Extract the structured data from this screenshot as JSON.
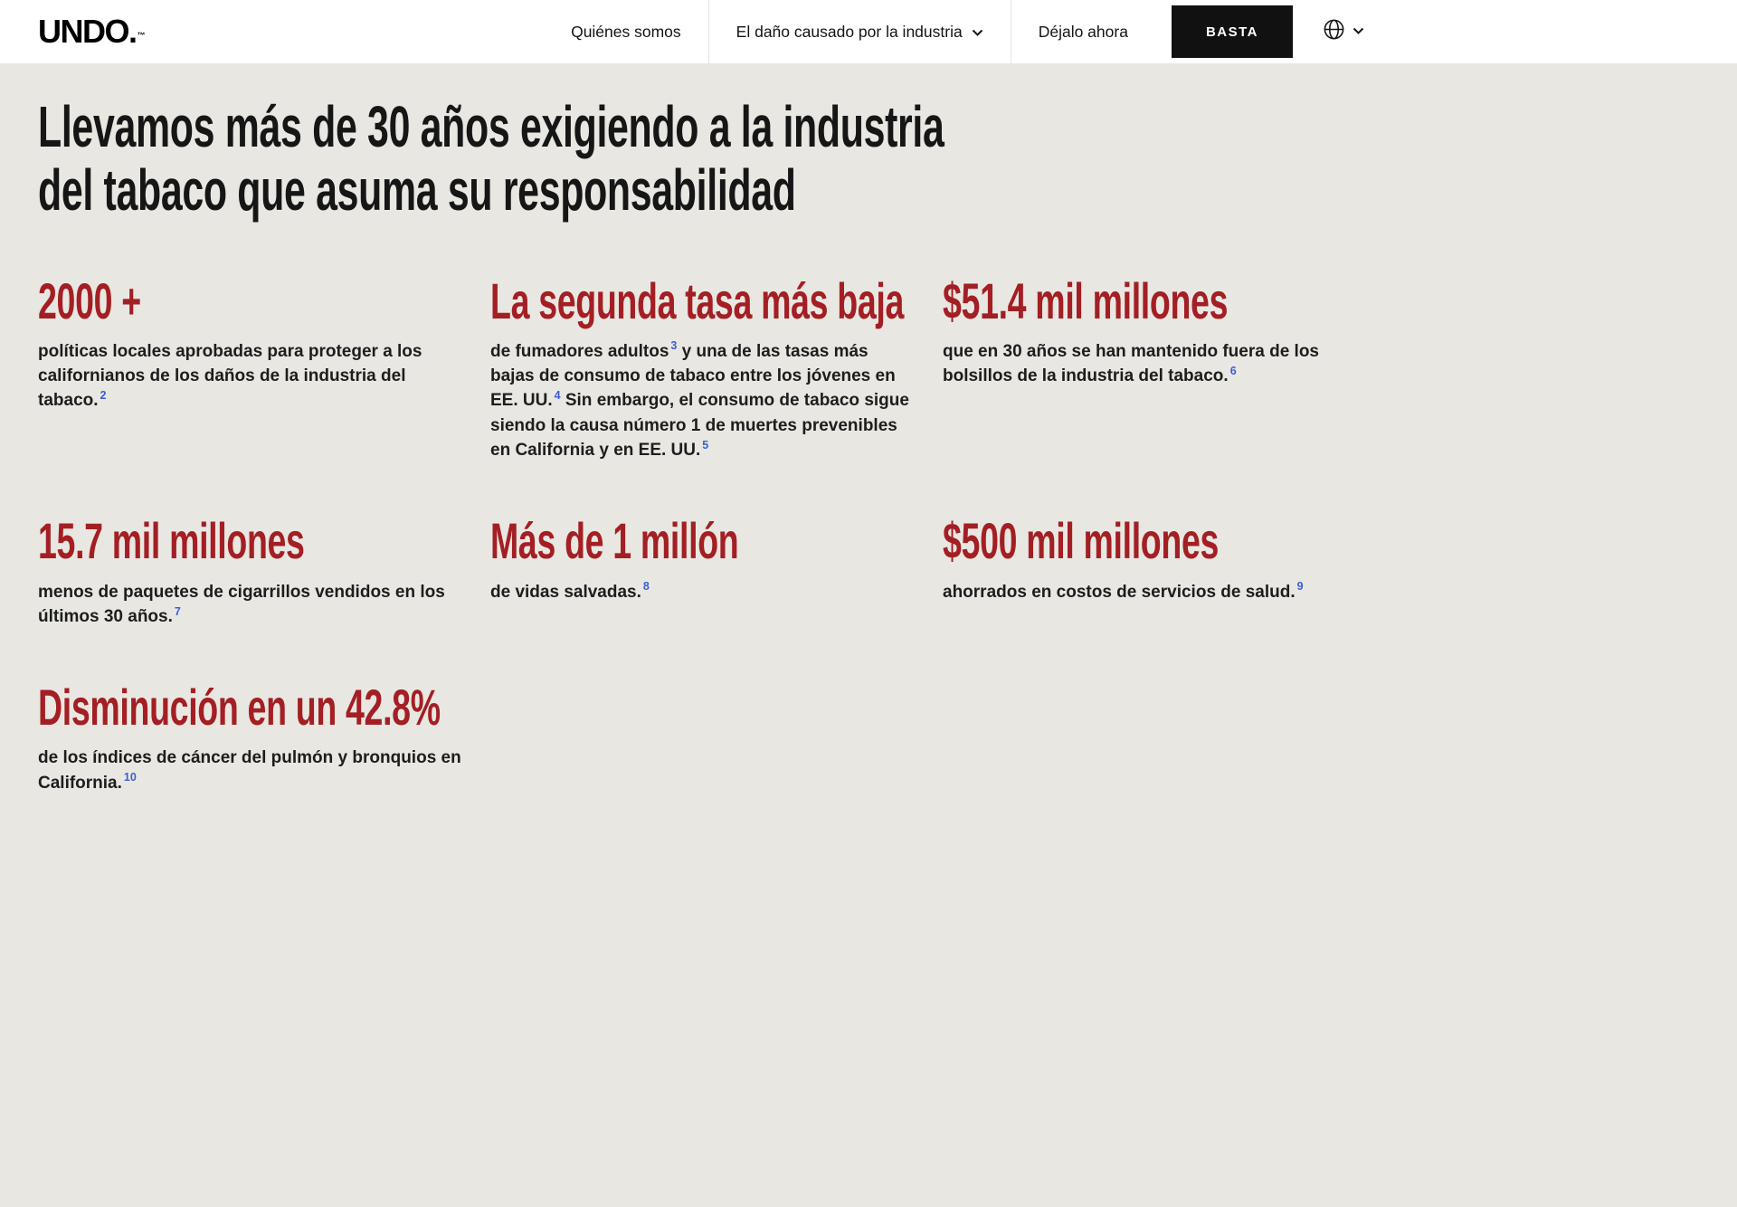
{
  "colors": {
    "background": "#e9e7e2",
    "nav_background": "#ffffff",
    "accent_red": "#a31f24",
    "headline_black": "#161616",
    "citation_blue": "#3b5ed6",
    "cta_background": "#111111",
    "cta_text": "#ffffff"
  },
  "nav": {
    "logo": "UNDO.",
    "trademark": "™",
    "items": [
      {
        "label": "Quiénes somos"
      },
      {
        "label": "El daño causado por la industria",
        "has_dropdown": true
      },
      {
        "label": "Déjalo ahora"
      }
    ],
    "cta_label": "BASTA",
    "language_icon": "globe-icon"
  },
  "hero": {
    "title": "Llevamos más de 30 años exigiendo a la industria\ndel tabaco que asuma su responsabilidad"
  },
  "stats": [
    {
      "number": "2000 +",
      "segments": [
        {
          "t": "políticas locales aprobadas para proteger a los californianos de los daños de la industria del tabaco."
        },
        {
          "s": "2"
        }
      ]
    },
    {
      "number": "La segunda tasa más baja",
      "segments": [
        {
          "t": "de fumadores adultos"
        },
        {
          "s": "3"
        },
        {
          "t": " y una de las tasas más bajas de consumo de tabaco entre los jóvenes en EE. UU."
        },
        {
          "s": "4"
        },
        {
          "t": " Sin embargo, el consumo de tabaco sigue siendo la causa número 1 de muertes prevenibles en California y en EE. UU."
        },
        {
          "s": "5"
        }
      ]
    },
    {
      "number": "$51.4 mil millones",
      "segments": [
        {
          "t": "que en 30 años se han mantenido fuera de los bolsillos de la industria del tabaco."
        },
        {
          "s": "6"
        }
      ]
    },
    {
      "number": "15.7 mil millones",
      "segments": [
        {
          "t": "menos de paquetes de cigarrillos vendidos en los últimos 30 años."
        },
        {
          "s": "7"
        }
      ]
    },
    {
      "number": "Más de 1 millón",
      "segments": [
        {
          "t": "de vidas salvadas."
        },
        {
          "s": "8"
        }
      ]
    },
    {
      "number": "$500 mil millones",
      "segments": [
        {
          "t": "ahorrados en costos de servicios de salud."
        },
        {
          "s": "9"
        }
      ]
    },
    {
      "number": "Disminución en un 42.8%",
      "segments": [
        {
          "t": "de los índices de cáncer del pulmón y bronquios en California."
        },
        {
          "s": "10"
        }
      ]
    }
  ]
}
